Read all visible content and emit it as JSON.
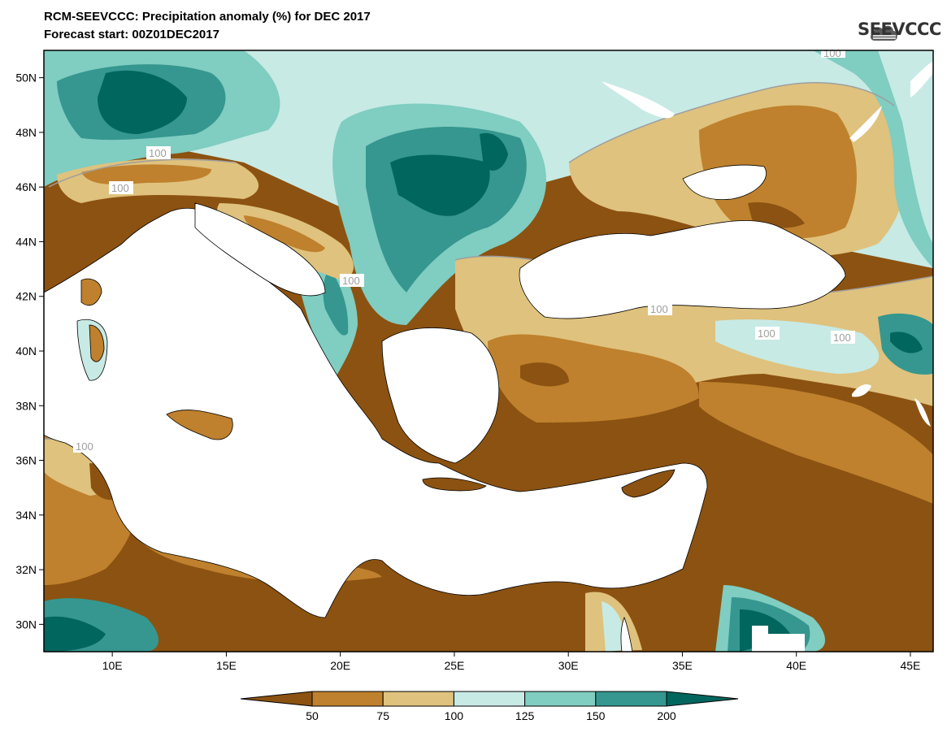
{
  "title": {
    "line1": "RCM-SEEVCCC: Precipitation anomaly (%) for DEC 2017",
    "line2": "Forecast start: 00Z01DEC2017"
  },
  "logo": {
    "text": "SEEVCCC",
    "icon": "cloud-icon"
  },
  "map": {
    "lon_range": [
      7,
      46
    ],
    "lat_range": [
      29,
      51
    ],
    "lat_ticks": [
      {
        "value": 50,
        "label": "50N"
      },
      {
        "value": 48,
        "label": "48N"
      },
      {
        "value": 46,
        "label": "46N"
      },
      {
        "value": 44,
        "label": "44N"
      },
      {
        "value": 42,
        "label": "42N"
      },
      {
        "value": 40,
        "label": "40N"
      },
      {
        "value": 38,
        "label": "38N"
      },
      {
        "value": 36,
        "label": "36N"
      },
      {
        "value": 34,
        "label": "34N"
      },
      {
        "value": 32,
        "label": "32N"
      },
      {
        "value": 30,
        "label": "30N"
      }
    ],
    "lon_ticks": [
      {
        "value": 10,
        "label": "10E"
      },
      {
        "value": 15,
        "label": "15E"
      },
      {
        "value": 20,
        "label": "20E"
      },
      {
        "value": 25,
        "label": "25E"
      },
      {
        "value": 30,
        "label": "30E"
      },
      {
        "value": 35,
        "label": "35E"
      },
      {
        "value": 40,
        "label": "40E"
      },
      {
        "value": 45,
        "label": "45E"
      }
    ],
    "contour_labels": [
      "100",
      "100",
      "100",
      "100",
      "100",
      "100",
      "100",
      "100"
    ]
  },
  "colorbar": {
    "levels": [
      "50",
      "75",
      "100",
      "125",
      "150",
      "200"
    ],
    "colors": [
      "#8c5211",
      "#bf812d",
      "#dfc27d",
      "#c7eae5",
      "#80cdc1",
      "#35978f",
      "#01665e"
    ]
  }
}
